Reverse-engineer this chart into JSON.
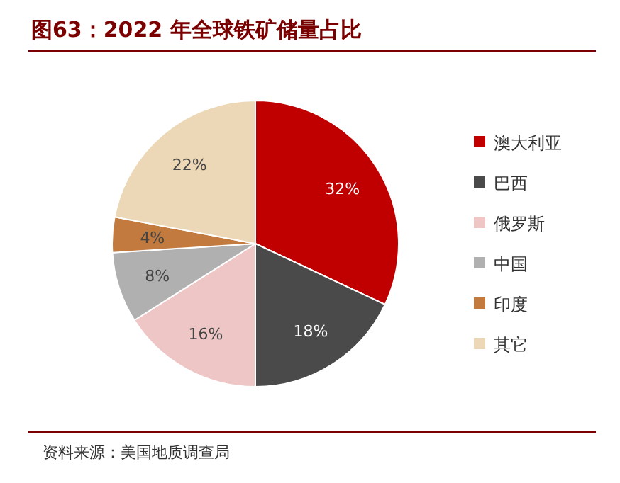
{
  "chart_data": {
    "type": "pie",
    "title": "图63：2022 年全球铁矿储量占比",
    "categories": [
      "澳大利亚",
      "巴西",
      "俄罗斯",
      "中国",
      "印度",
      "其它"
    ],
    "values": [
      32,
      18,
      16,
      8,
      4,
      22
    ],
    "colors": [
      "#c00000",
      "#4a4a4a",
      "#efc6c6",
      "#b0b0b0",
      "#c27a3e",
      "#ecd8b6"
    ],
    "value_labels": [
      "32%",
      "18%",
      "16%",
      "8%",
      "4%",
      "22%"
    ],
    "legend": "right",
    "annotations": [
      "资料来源：美国地质调查局"
    ]
  }
}
